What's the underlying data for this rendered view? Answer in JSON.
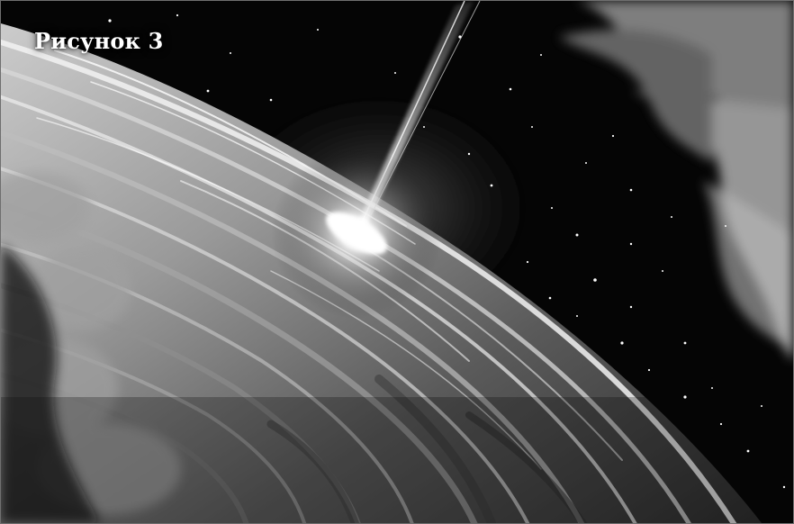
{
  "figure": {
    "caption": "Рисунок 3",
    "palette": {
      "space": "#050505",
      "disk_light": "#e6e6e6",
      "disk_mid": "#8a8a8a",
      "disk_dark": "#2a2a2a",
      "core_glow": "#ffffff",
      "nebula": "#9a9a9a"
    }
  }
}
